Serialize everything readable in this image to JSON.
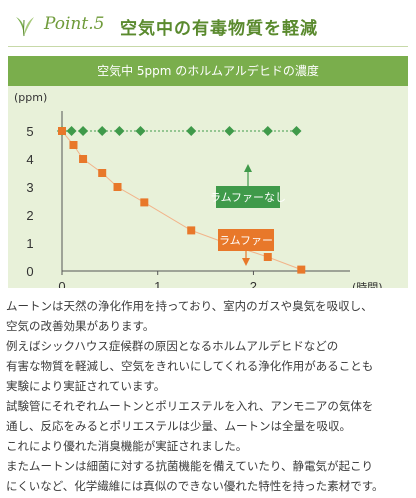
{
  "header": {
    "point_label": "Point.5",
    "title": "空気中の有毒物質を軽減",
    "icon": "leaf-icon"
  },
  "chart_data": {
    "type": "line",
    "title": "空気中 5ppm のホルムアルデヒドの濃度",
    "ylabel": "(ppm)",
    "xlabel": "(時間)",
    "x_ticks": [
      "0",
      "1",
      "2"
    ],
    "y_ticks": [
      "0",
      "1",
      "2",
      "3",
      "4",
      "5"
    ],
    "xlim": [
      0,
      2.8
    ],
    "ylim": [
      0,
      5
    ],
    "series": [
      {
        "name": "ラムファーなし",
        "color": "#3f9a4a",
        "marker": "diamond",
        "x": [
          0,
          0.1,
          0.22,
          0.42,
          0.6,
          0.82,
          1.35,
          1.75,
          2.15,
          2.45
        ],
        "y": [
          5,
          5,
          5,
          5,
          5,
          5,
          5,
          5,
          5,
          5
        ]
      },
      {
        "name": "ラムファー",
        "color": "#e8782a",
        "marker": "square",
        "x": [
          0,
          0.12,
          0.22,
          0.42,
          0.58,
          0.86,
          1.35,
          1.75,
          2.15,
          2.5
        ],
        "y": [
          5,
          4.5,
          4,
          3.5,
          3,
          2.45,
          1.45,
          0.95,
          0.5,
          0.05
        ]
      }
    ]
  },
  "body": {
    "lines": [
      "ムートンは天然の浄化作用を持っており、室内のガスや臭気を吸収し、",
      "空気の改善効果があります。",
      "例えばシックハウス症候群の原因となるホルムアルデヒドなどの",
      "有害な物質を軽減し、空気をきれいにしてくれる浄化作用があることも",
      "実験により実証されています。",
      "試験管にそれぞれムートンとポリエステルを入れ、アンモニアの気体を",
      "通し、反応をみるとポリエステルは少量、ムートンは全量を吸収。",
      "これにより優れた消臭機能が実証されました。",
      "またムートンは細菌に対する抗菌機能を備えていたり、静電気が起こり",
      "にくいなど、化学繊維には真似のできない優れた特性を持った素材です。"
    ]
  }
}
